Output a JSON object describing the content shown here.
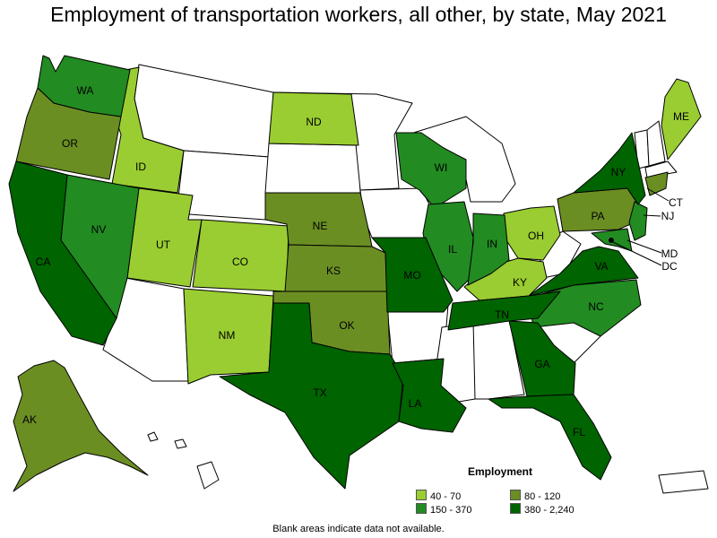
{
  "title": "Employment of transportation workers, all other, by state, May 2021",
  "legend": {
    "title": "Employment",
    "items": [
      {
        "label": "40 - 70",
        "color": "#9acd32"
      },
      {
        "label": "80 - 120",
        "color": "#6b8e23"
      },
      {
        "label": "150 - 370",
        "color": "#228b22"
      },
      {
        "label": "380 - 2,240",
        "color": "#006400"
      }
    ]
  },
  "footnote": "Blank areas indicate data not available.",
  "state_labels": [
    "WA",
    "OR",
    "CA",
    "NV",
    "ID",
    "UT",
    "AK",
    "CO",
    "NM",
    "ND",
    "NE",
    "KS",
    "OK",
    "TX",
    "MO",
    "WI",
    "IL",
    "IN",
    "OH",
    "KY",
    "TN",
    "LA",
    "GA",
    "FL",
    "NC",
    "VA",
    "PA",
    "NY",
    "ME",
    "CT",
    "NJ",
    "MD",
    "DC"
  ]
}
